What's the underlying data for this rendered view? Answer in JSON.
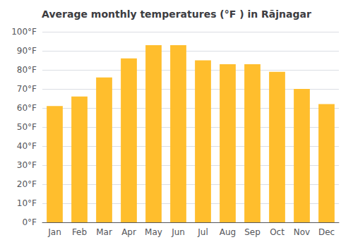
{
  "chart_data": {
    "type": "bar",
    "title": "Average monthly temperatures (°F ) in Rājnagar",
    "categories": [
      "Jan",
      "Feb",
      "Mar",
      "Apr",
      "May",
      "Jun",
      "Jul",
      "Aug",
      "Sep",
      "Oct",
      "Nov",
      "Dec"
    ],
    "values": [
      61,
      66,
      76,
      86,
      93,
      93,
      85,
      83,
      83,
      79,
      70,
      62
    ],
    "color": "#FFBE2D",
    "ylim": [
      0,
      100
    ],
    "yticks": [
      {
        "value": 0,
        "label": "0°F"
      },
      {
        "value": 10,
        "label": "10°F"
      },
      {
        "value": 20,
        "label": "20°F"
      },
      {
        "value": 30,
        "label": "30°F"
      },
      {
        "value": 40,
        "label": "40°F"
      },
      {
        "value": 50,
        "label": "50°F"
      },
      {
        "value": 60,
        "label": "60°F"
      },
      {
        "value": 70,
        "label": "70°F"
      },
      {
        "value": 80,
        "label": "80°F"
      },
      {
        "value": 90,
        "label": "90°F"
      },
      {
        "value": 100,
        "label": "100°F"
      }
    ],
    "grid": true
  }
}
